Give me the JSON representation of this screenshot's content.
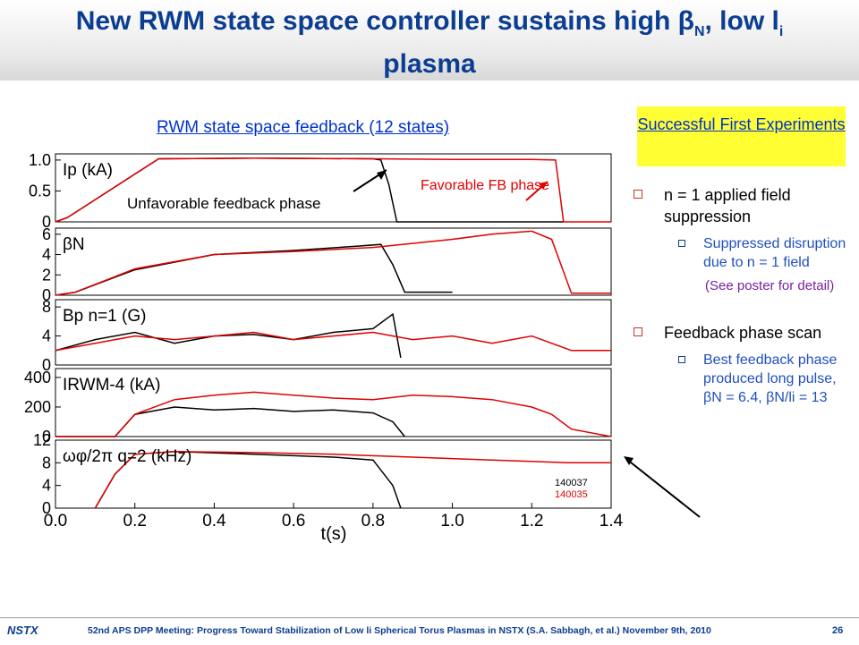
{
  "slide": {
    "title": "New RWM state space controller sustains high βN, low li plasma",
    "subheading": "RWM state space feedback (12 states)",
    "callout": "Successful First Experiments"
  },
  "bullets": [
    {
      "text": "n = 1 applied field suppression",
      "sub": "Suppressed disruption due to n = 1 field",
      "note": "(See poster for detail)"
    },
    {
      "text": "Feedback phase scan",
      "sub": "Best feedback phase produced long pulse, βN = 6.4, βN/li = 13"
    }
  ],
  "footer": {
    "logo": "NSTX",
    "text": "52nd APS DPP Meeting: Progress Toward Stabilization of Low li Spherical Torus Plasmas in NSTX (S.A. Sabbagh, et al.)   November 9th, 2010",
    "page": "26"
  },
  "colors": {
    "shot_140037": "#000000",
    "shot_140035": "#e00000",
    "title": "#0b3d91"
  },
  "chart_data": {
    "type": "line",
    "x_label": "t(s)",
    "x_ticks": [
      "0.0",
      "0.2",
      "0.4",
      "0.6",
      "0.8",
      "1.0",
      "1.2",
      "1.4"
    ],
    "xlim": [
      0,
      1.4
    ],
    "legend": [
      "140037",
      "140035"
    ],
    "annotations": [
      "Unfavorable feedback phase",
      "Favorable FB phase"
    ],
    "panels": [
      {
        "label": "Ip (kA)",
        "ylim": [
          0,
          1.1
        ],
        "y_ticks": [
          "0",
          "0.5",
          "1.0"
        ],
        "series": [
          {
            "name": "140037",
            "x": [
              0.0,
              0.03,
              0.26,
              0.5,
              0.8,
              0.82,
              0.84,
              0.86,
              1.28
            ],
            "y": [
              0.0,
              0.07,
              1.02,
              1.03,
              1.02,
              1.0,
              0.6,
              0.0,
              0.0
            ]
          },
          {
            "name": "140035",
            "x": [
              0.0,
              0.03,
              0.26,
              0.5,
              0.8,
              1.0,
              1.2,
              1.26,
              1.28,
              1.4
            ],
            "y": [
              0.0,
              0.07,
              1.02,
              1.03,
              1.02,
              1.01,
              1.01,
              1.0,
              0.0,
              0.0
            ]
          }
        ]
      },
      {
        "label": "βN",
        "ylim": [
          0,
          6.6
        ],
        "y_ticks": [
          "0",
          "2",
          "4",
          "6"
        ],
        "series": [
          {
            "name": "140037",
            "x": [
              0.0,
              0.05,
              0.2,
              0.4,
              0.6,
              0.75,
              0.82,
              0.85,
              0.88,
              1.0
            ],
            "y": [
              0.0,
              0.3,
              2.5,
              4.0,
              4.4,
              4.8,
              5.0,
              3.0,
              0.3,
              0.3
            ]
          },
          {
            "name": "140035",
            "x": [
              0.0,
              0.05,
              0.2,
              0.4,
              0.6,
              0.8,
              1.0,
              1.1,
              1.2,
              1.25,
              1.3,
              1.4
            ],
            "y": [
              0.0,
              0.3,
              2.6,
              4.0,
              4.3,
              4.7,
              5.5,
              6.0,
              6.3,
              5.5,
              0.2,
              0.2
            ]
          }
        ]
      },
      {
        "label": "Bp n=1 (G)",
        "ylim": [
          0,
          9
        ],
        "y_ticks": [
          "0",
          "4",
          "8"
        ],
        "series": [
          {
            "name": "140037",
            "x": [
              0.0,
              0.1,
              0.2,
              0.3,
              0.4,
              0.5,
              0.6,
              0.7,
              0.8,
              0.85,
              0.87
            ],
            "y": [
              2.0,
              3.5,
              4.5,
              3.0,
              4.0,
              4.2,
              3.5,
              4.5,
              5.0,
              7.0,
              1.0
            ]
          },
          {
            "name": "140035",
            "x": [
              0.0,
              0.1,
              0.2,
              0.3,
              0.4,
              0.5,
              0.6,
              0.7,
              0.8,
              0.9,
              1.0,
              1.1,
              1.2,
              1.3,
              1.4
            ],
            "y": [
              2.0,
              3.0,
              4.0,
              3.5,
              4.0,
              4.5,
              3.5,
              4.0,
              4.5,
              3.5,
              4.0,
              3.0,
              4.0,
              2.0,
              2.0
            ]
          }
        ]
      },
      {
        "label": "IRWM-4 (kA)",
        "ylim": [
          0,
          460
        ],
        "y_ticks": [
          "0",
          "200",
          "400"
        ],
        "series": [
          {
            "name": "140037",
            "x": [
              0.0,
              0.15,
              0.2,
              0.3,
              0.4,
              0.5,
              0.6,
              0.7,
              0.8,
              0.85,
              0.88
            ],
            "y": [
              0,
              0,
              150,
              200,
              180,
              190,
              170,
              180,
              160,
              100,
              0
            ]
          },
          {
            "name": "140035",
            "x": [
              0.0,
              0.15,
              0.2,
              0.3,
              0.4,
              0.5,
              0.6,
              0.7,
              0.8,
              0.9,
              1.0,
              1.1,
              1.2,
              1.25,
              1.3,
              1.4
            ],
            "y": [
              0,
              0,
              150,
              250,
              280,
              300,
              280,
              260,
              250,
              280,
              270,
              250,
              200,
              150,
              50,
              0
            ]
          }
        ]
      },
      {
        "label": "ωφ/2π q=2 (kHz)",
        "ylim": [
          0,
          12
        ],
        "y_ticks": [
          "0",
          "4",
          "8",
          "12"
        ],
        "series": [
          {
            "name": "140037",
            "x": [
              0.1,
              0.15,
              0.2,
              0.3,
              0.5,
              0.7,
              0.8,
              0.85,
              0.87
            ],
            "y": [
              0,
              6,
              9.5,
              10,
              9.5,
              9,
              8.5,
              4,
              0
            ]
          },
          {
            "name": "140035",
            "x": [
              0.1,
              0.15,
              0.2,
              0.3,
              0.5,
              0.7,
              0.9,
              1.1,
              1.3,
              1.4
            ],
            "y": [
              0,
              6,
              9.5,
              10,
              9.8,
              9.5,
              9.0,
              8.5,
              8.0,
              8.0
            ]
          }
        ]
      }
    ]
  }
}
